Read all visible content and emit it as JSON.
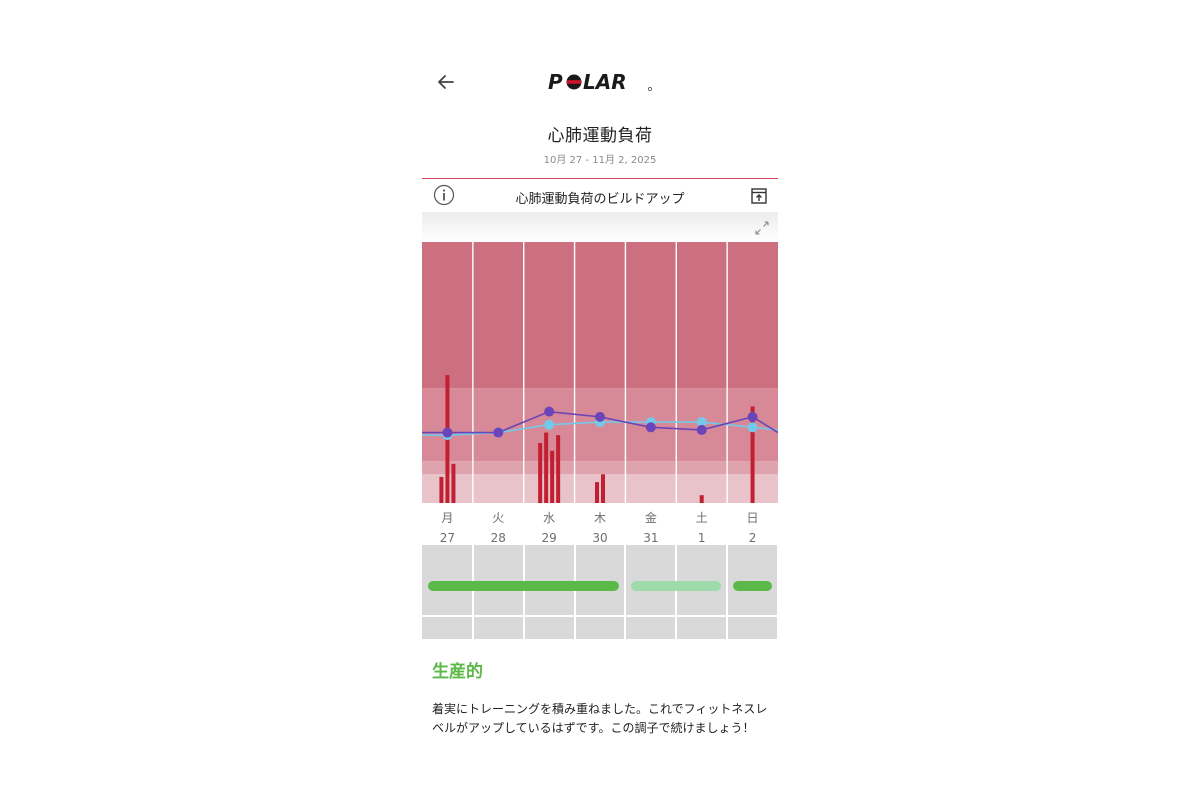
{
  "header": {
    "back_icon": "arrow-left-icon",
    "logo_text": "POLAR",
    "title": "心肺運動負荷",
    "date_range": "10月 27 - 11月 2, 2025"
  },
  "chart_header": {
    "info_icon": "info-icon",
    "title": "心肺運動負荷のビルドアップ",
    "export_icon": "export-icon",
    "expand_icon": "expand-icon"
  },
  "days": [
    {
      "weekday": "月",
      "date": "27"
    },
    {
      "weekday": "火",
      "date": "28"
    },
    {
      "weekday": "水",
      "date": "29"
    },
    {
      "weekday": "木",
      "date": "30"
    },
    {
      "weekday": "金",
      "date": "31"
    },
    {
      "weekday": "土",
      "date": "1"
    },
    {
      "weekday": "日",
      "date": "2"
    }
  ],
  "chart_data": {
    "type": "bar",
    "categories": [
      "月",
      "火",
      "水",
      "木",
      "金",
      "土",
      "日"
    ],
    "ylim": [
      0,
      100
    ],
    "zones": [
      {
        "from": 0,
        "to": 11,
        "color": "#e8c3c9"
      },
      {
        "from": 11,
        "to": 16,
        "color": "#dfa3ae"
      },
      {
        "from": 16,
        "to": 44,
        "color": "#d88997"
      },
      {
        "from": 44,
        "to": 100,
        "color": "#cc6f7f"
      }
    ],
    "bars": [
      [
        10,
        49,
        15
      ],
      [],
      [
        23,
        27,
        20,
        26
      ],
      [
        8,
        11
      ],
      [],
      [
        3
      ],
      [
        37
      ]
    ],
    "series": [
      {
        "color": "#6a44b8",
        "values": [
          27,
          27,
          35,
          33,
          29,
          28,
          33
        ],
        "edge_end": 27
      },
      {
        "color": "#74c9e8",
        "values": [
          26,
          27,
          30,
          31,
          31,
          31,
          29
        ],
        "edge_end": 28
      }
    ],
    "grid": true
  },
  "status_bars": [
    {
      "start_day": 0,
      "end_day": 4,
      "color": "#5cb848"
    },
    {
      "start_day": 4,
      "end_day": 6,
      "color": "#9fdbaa"
    },
    {
      "start_day": 6,
      "end_day": 7,
      "color": "#5cb848"
    }
  ],
  "status": {
    "title": "生産的",
    "description": "着実にトレーニングを積み重ねました。これでフィットネスレベルがアップしているはずです。この調子で続けましょう！"
  }
}
